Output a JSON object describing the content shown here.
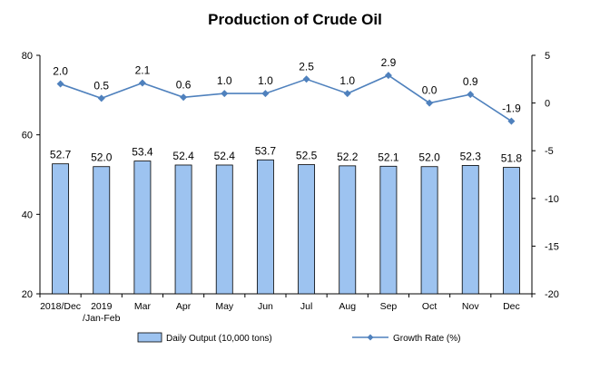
{
  "chart_data": {
    "type": "bar",
    "title": "Production of Crude Oil",
    "categories": [
      "2018/Dec",
      "2019\n/Jan-Feb",
      "Mar",
      "Apr",
      "May",
      "Jun",
      "Jul",
      "Aug",
      "Sep",
      "Oct",
      "Nov",
      "Dec"
    ],
    "series": [
      {
        "name": "Daily Output (10,000 tons)",
        "type": "bar",
        "axis": "left",
        "values": [
          52.7,
          52.0,
          53.4,
          52.4,
          52.4,
          53.7,
          52.5,
          52.2,
          52.1,
          52.0,
          52.3,
          51.8
        ],
        "labels": [
          "52.7",
          "52.0",
          "53.4",
          "52.4",
          "52.4",
          "53.7",
          "52.5",
          "52.2",
          "52.1",
          "52.0",
          "52.3",
          "51.8"
        ]
      },
      {
        "name": "Growth Rate (%)",
        "type": "line",
        "axis": "right",
        "values": [
          2.0,
          0.5,
          2.1,
          0.6,
          1.0,
          1.0,
          2.5,
          1.0,
          2.9,
          0.0,
          0.9,
          -1.9
        ],
        "labels": [
          "2.0",
          "0.5",
          "2.1",
          "0.6",
          "1.0",
          "1.0",
          "2.5",
          "1.0",
          "2.9",
          "0.0",
          "0.9",
          "-1.9"
        ]
      }
    ],
    "y_left": {
      "range": [
        20,
        80
      ],
      "ticks": [
        "20",
        "40",
        "60",
        "80"
      ]
    },
    "y_right": {
      "range": [
        -20,
        5
      ],
      "ticks": [
        "5",
        "0",
        "-5",
        "-10",
        "-15",
        "-20"
      ]
    },
    "grid": false,
    "legend_position": "bottom",
    "colors": {
      "bar_fill": "#9dc3f0",
      "bar_stroke": "#000000",
      "line": "#4f81bd"
    }
  }
}
